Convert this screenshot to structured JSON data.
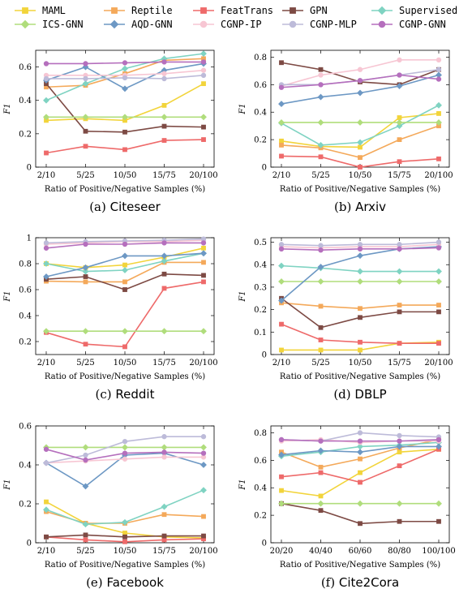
{
  "legend": [
    {
      "name": "MAML",
      "color": "#f2d43b",
      "marker": "square"
    },
    {
      "name": "Reptile",
      "color": "#f4a95a",
      "marker": "square"
    },
    {
      "name": "FeatTrans",
      "color": "#ee6a6a",
      "marker": "square"
    },
    {
      "name": "GPN",
      "color": "#7d4a44",
      "marker": "square"
    },
    {
      "name": "Supervised",
      "color": "#7fd3c2",
      "marker": "diamond"
    },
    {
      "name": "ICS-GNN",
      "color": "#b0dd7c",
      "marker": "diamond"
    },
    {
      "name": "AQD-GNN",
      "color": "#6d98c4",
      "marker": "diamond"
    },
    {
      "name": "CGNP-IP",
      "color": "#f7c6d3",
      "marker": "circle"
    },
    {
      "name": "CGNP-MLP",
      "color": "#bdbbd9",
      "marker": "circle"
    },
    {
      "name": "CGNP-GNN",
      "color": "#b56fbd",
      "marker": "circle"
    }
  ],
  "chart_data": [
    {
      "type": "line",
      "label": "(a)",
      "name": "Citeseer",
      "xlabel": "Ratio of Positive/Negative Samples (%)",
      "ylabel": "F1",
      "categories": [
        "2/10",
        "5/25",
        "10/50",
        "15/75",
        "20/100"
      ],
      "ylim": [
        0,
        0.7
      ],
      "yticks": [
        "0",
        "0.2",
        "0.4",
        "0.6"
      ],
      "ytick_values": [
        0,
        0.2,
        0.4,
        0.6
      ],
      "series": [
        {
          "name": "MAML",
          "values": [
            0.28,
            0.29,
            0.28,
            0.37,
            0.5
          ]
        },
        {
          "name": "Reptile",
          "values": [
            0.48,
            0.49,
            0.56,
            0.64,
            0.65
          ]
        },
        {
          "name": "FeatTrans",
          "values": [
            0.085,
            0.125,
            0.105,
            0.16,
            0.165
          ]
        },
        {
          "name": "GPN",
          "values": [
            0.5,
            0.215,
            0.21,
            0.245,
            0.24
          ]
        },
        {
          "name": "Supervised",
          "values": [
            0.4,
            0.5,
            0.59,
            0.65,
            0.68
          ]
        },
        {
          "name": "ICS-GNN",
          "values": [
            0.3,
            0.3,
            0.3,
            0.3,
            0.3
          ]
        },
        {
          "name": "AQD-GNN",
          "values": [
            0.52,
            0.6,
            0.47,
            0.58,
            0.62
          ]
        },
        {
          "name": "CGNP-IP",
          "values": [
            0.55,
            0.55,
            0.55,
            0.56,
            0.58
          ]
        },
        {
          "name": "CGNP-MLP",
          "values": [
            0.53,
            0.53,
            0.535,
            0.53,
            0.55
          ]
        },
        {
          "name": "CGNP-GNN",
          "values": [
            0.62,
            0.62,
            0.625,
            0.63,
            0.63
          ]
        }
      ]
    },
    {
      "type": "line",
      "label": "(b)",
      "name": "Arxiv",
      "xlabel": "Ratio of Positive/Negative Samples (%)",
      "ylabel": "F1",
      "categories": [
        "2/10",
        "5/25",
        "10/50",
        "15/75",
        "20/100"
      ],
      "ylim": [
        0,
        0.85
      ],
      "yticks": [
        "0",
        "0.2",
        "0.4",
        "0.6",
        "0.8"
      ],
      "ytick_values": [
        0,
        0.2,
        0.4,
        0.6,
        0.8
      ],
      "series": [
        {
          "name": "MAML",
          "values": [
            0.19,
            0.15,
            0.145,
            0.36,
            0.39
          ]
        },
        {
          "name": "Reptile",
          "values": [
            0.16,
            0.14,
            0.07,
            0.2,
            0.3
          ]
        },
        {
          "name": "FeatTrans",
          "values": [
            0.08,
            0.075,
            0.0,
            0.04,
            0.06
          ]
        },
        {
          "name": "GPN",
          "values": [
            0.76,
            0.71,
            0.62,
            0.6,
            0.71
          ]
        },
        {
          "name": "Supervised",
          "values": [
            0.32,
            0.16,
            0.18,
            0.3,
            0.45
          ]
        },
        {
          "name": "ICS-GNN",
          "values": [
            0.325,
            0.325,
            0.325,
            0.325,
            0.325
          ]
        },
        {
          "name": "AQD-GNN",
          "values": [
            0.46,
            0.51,
            0.54,
            0.59,
            0.67
          ]
        },
        {
          "name": "CGNP-IP",
          "values": [
            0.59,
            0.67,
            0.71,
            0.78,
            0.78
          ]
        },
        {
          "name": "CGNP-MLP",
          "values": [
            0.6,
            0.6,
            0.63,
            0.67,
            0.71
          ]
        },
        {
          "name": "CGNP-GNN",
          "values": [
            0.58,
            0.6,
            0.63,
            0.67,
            0.64
          ]
        }
      ]
    },
    {
      "type": "line",
      "label": "(c)",
      "name": "Reddit",
      "xlabel": "Ratio of Positive/Negative Samples (%)",
      "ylabel": "F1",
      "categories": [
        "2/10",
        "5/25",
        "10/50",
        "15/75",
        "20/100"
      ],
      "ylim": [
        0.1,
        1.0
      ],
      "yticks": [
        "0.2",
        "0.4",
        "0.6",
        "0.8",
        "1"
      ],
      "ytick_values": [
        0.2,
        0.4,
        0.6,
        0.8,
        1.0
      ],
      "series": [
        {
          "name": "MAML",
          "values": [
            0.8,
            0.77,
            0.79,
            0.85,
            0.92
          ]
        },
        {
          "name": "Reptile",
          "values": [
            0.665,
            0.66,
            0.66,
            0.81,
            0.81
          ]
        },
        {
          "name": "FeatTrans",
          "values": [
            0.27,
            0.18,
            0.16,
            0.61,
            0.66
          ]
        },
        {
          "name": "GPN",
          "values": [
            0.68,
            0.7,
            0.6,
            0.72,
            0.71
          ]
        },
        {
          "name": "Supervised",
          "values": [
            0.8,
            0.74,
            0.75,
            0.82,
            0.88
          ]
        },
        {
          "name": "ICS-GNN",
          "values": [
            0.28,
            0.28,
            0.28,
            0.28,
            0.28
          ]
        },
        {
          "name": "AQD-GNN",
          "values": [
            0.7,
            0.77,
            0.86,
            0.86,
            0.88
          ]
        },
        {
          "name": "CGNP-IP",
          "values": [
            0.95,
            0.96,
            0.97,
            0.97,
            0.98
          ]
        },
        {
          "name": "CGNP-MLP",
          "values": [
            0.96,
            0.97,
            0.975,
            0.98,
            0.99
          ]
        },
        {
          "name": "CGNP-GNN",
          "values": [
            0.92,
            0.95,
            0.95,
            0.96,
            0.96
          ]
        }
      ]
    },
    {
      "type": "line",
      "label": "(d)",
      "name": "DBLP",
      "xlabel": "Ratio of Positive/Negative Samples (%)",
      "ylabel": "F1",
      "categories": [
        "2/10",
        "5/25",
        "10/50",
        "15/75",
        "20/100"
      ],
      "ylim": [
        0,
        0.52
      ],
      "yticks": [
        "0",
        "0.1",
        "0.2",
        "0.3",
        "0.4",
        "0.5"
      ],
      "ytick_values": [
        0,
        0.1,
        0.2,
        0.3,
        0.4,
        0.5
      ],
      "series": [
        {
          "name": "MAML",
          "values": [
            0.02,
            0.02,
            0.02,
            0.05,
            0.055
          ]
        },
        {
          "name": "Reptile",
          "values": [
            0.23,
            0.215,
            0.205,
            0.22,
            0.22
          ]
        },
        {
          "name": "FeatTrans",
          "values": [
            0.135,
            0.065,
            0.055,
            0.05,
            0.05
          ]
        },
        {
          "name": "GPN",
          "values": [
            0.25,
            0.12,
            0.165,
            0.19,
            0.19
          ]
        },
        {
          "name": "Supervised",
          "values": [
            0.395,
            0.385,
            0.37,
            0.37,
            0.37
          ]
        },
        {
          "name": "ICS-GNN",
          "values": [
            0.325,
            0.325,
            0.325,
            0.325,
            0.325
          ]
        },
        {
          "name": "AQD-GNN",
          "values": [
            0.24,
            0.39,
            0.44,
            0.47,
            0.48
          ]
        },
        {
          "name": "CGNP-IP",
          "values": [
            0.48,
            0.475,
            0.48,
            0.48,
            0.49
          ]
        },
        {
          "name": "CGNP-MLP",
          "values": [
            0.49,
            0.485,
            0.49,
            0.49,
            0.5
          ]
        },
        {
          "name": "CGNP-GNN",
          "values": [
            0.47,
            0.465,
            0.47,
            0.47,
            0.475
          ]
        }
      ]
    },
    {
      "type": "line",
      "label": "(e)",
      "name": "Facebook",
      "xlabel": "Ratio of Positive/Negative Samples (%)",
      "ylabel": "F1",
      "categories": [
        "2/10",
        "5/25",
        "10/50",
        "15/75",
        "20/100"
      ],
      "ylim": [
        0,
        0.6
      ],
      "yticks": [
        "0",
        "0.2",
        "0.4",
        "0.6"
      ],
      "ytick_values": [
        0,
        0.2,
        0.4,
        0.6
      ],
      "series": [
        {
          "name": "MAML",
          "values": [
            0.21,
            0.1,
            0.05,
            0.03,
            0.025
          ]
        },
        {
          "name": "Reptile",
          "values": [
            0.16,
            0.1,
            0.1,
            0.145,
            0.135
          ]
        },
        {
          "name": "FeatTrans",
          "values": [
            0.03,
            0.015,
            0.005,
            0.015,
            0.02
          ]
        },
        {
          "name": "GPN",
          "values": [
            0.03,
            0.04,
            0.03,
            0.035,
            0.035
          ]
        },
        {
          "name": "Supervised",
          "values": [
            0.17,
            0.095,
            0.105,
            0.185,
            0.27
          ]
        },
        {
          "name": "ICS-GNN",
          "values": [
            0.49,
            0.49,
            0.49,
            0.49,
            0.49
          ]
        },
        {
          "name": "AQD-GNN",
          "values": [
            0.41,
            0.29,
            0.45,
            0.46,
            0.4
          ]
        },
        {
          "name": "CGNP-IP",
          "values": [
            0.41,
            0.42,
            0.43,
            0.44,
            0.44
          ]
        },
        {
          "name": "CGNP-MLP",
          "values": [
            0.41,
            0.45,
            0.52,
            0.545,
            0.545
          ]
        },
        {
          "name": "CGNP-GNN",
          "values": [
            0.48,
            0.425,
            0.46,
            0.465,
            0.46
          ]
        }
      ]
    },
    {
      "type": "line",
      "label": "(f)",
      "name": "Cite2Cora",
      "xlabel": "Ratio of Positive/Negative Samples (%)",
      "ylabel": "F1",
      "categories": [
        "20/20",
        "40/40",
        "60/60",
        "80/80",
        "100/100"
      ],
      "ylim": [
        0,
        0.85
      ],
      "yticks": [
        "0",
        "0.2",
        "0.4",
        "0.6",
        "0.8"
      ],
      "ytick_values": [
        0,
        0.2,
        0.4,
        0.6,
        0.8
      ],
      "series": [
        {
          "name": "MAML",
          "values": [
            0.38,
            0.34,
            0.51,
            0.66,
            0.68
          ]
        },
        {
          "name": "Reptile",
          "values": [
            0.66,
            0.55,
            0.61,
            0.69,
            0.75
          ]
        },
        {
          "name": "FeatTrans",
          "values": [
            0.48,
            0.51,
            0.44,
            0.56,
            0.68
          ]
        },
        {
          "name": "GPN",
          "values": [
            0.285,
            0.235,
            0.14,
            0.155,
            0.155
          ]
        },
        {
          "name": "Supervised",
          "values": [
            0.63,
            0.66,
            0.7,
            0.71,
            0.73
          ]
        },
        {
          "name": "ICS-GNN",
          "values": [
            0.285,
            0.285,
            0.285,
            0.285,
            0.285
          ]
        },
        {
          "name": "AQD-GNN",
          "values": [
            0.64,
            0.67,
            0.66,
            0.7,
            0.7
          ]
        },
        {
          "name": "CGNP-IP",
          "values": [
            0.74,
            0.75,
            0.73,
            0.74,
            0.74
          ]
        },
        {
          "name": "CGNP-MLP",
          "values": [
            0.75,
            0.74,
            0.8,
            0.78,
            0.77
          ]
        },
        {
          "name": "CGNP-GNN",
          "values": [
            0.75,
            0.74,
            0.74,
            0.74,
            0.75
          ]
        }
      ]
    }
  ]
}
